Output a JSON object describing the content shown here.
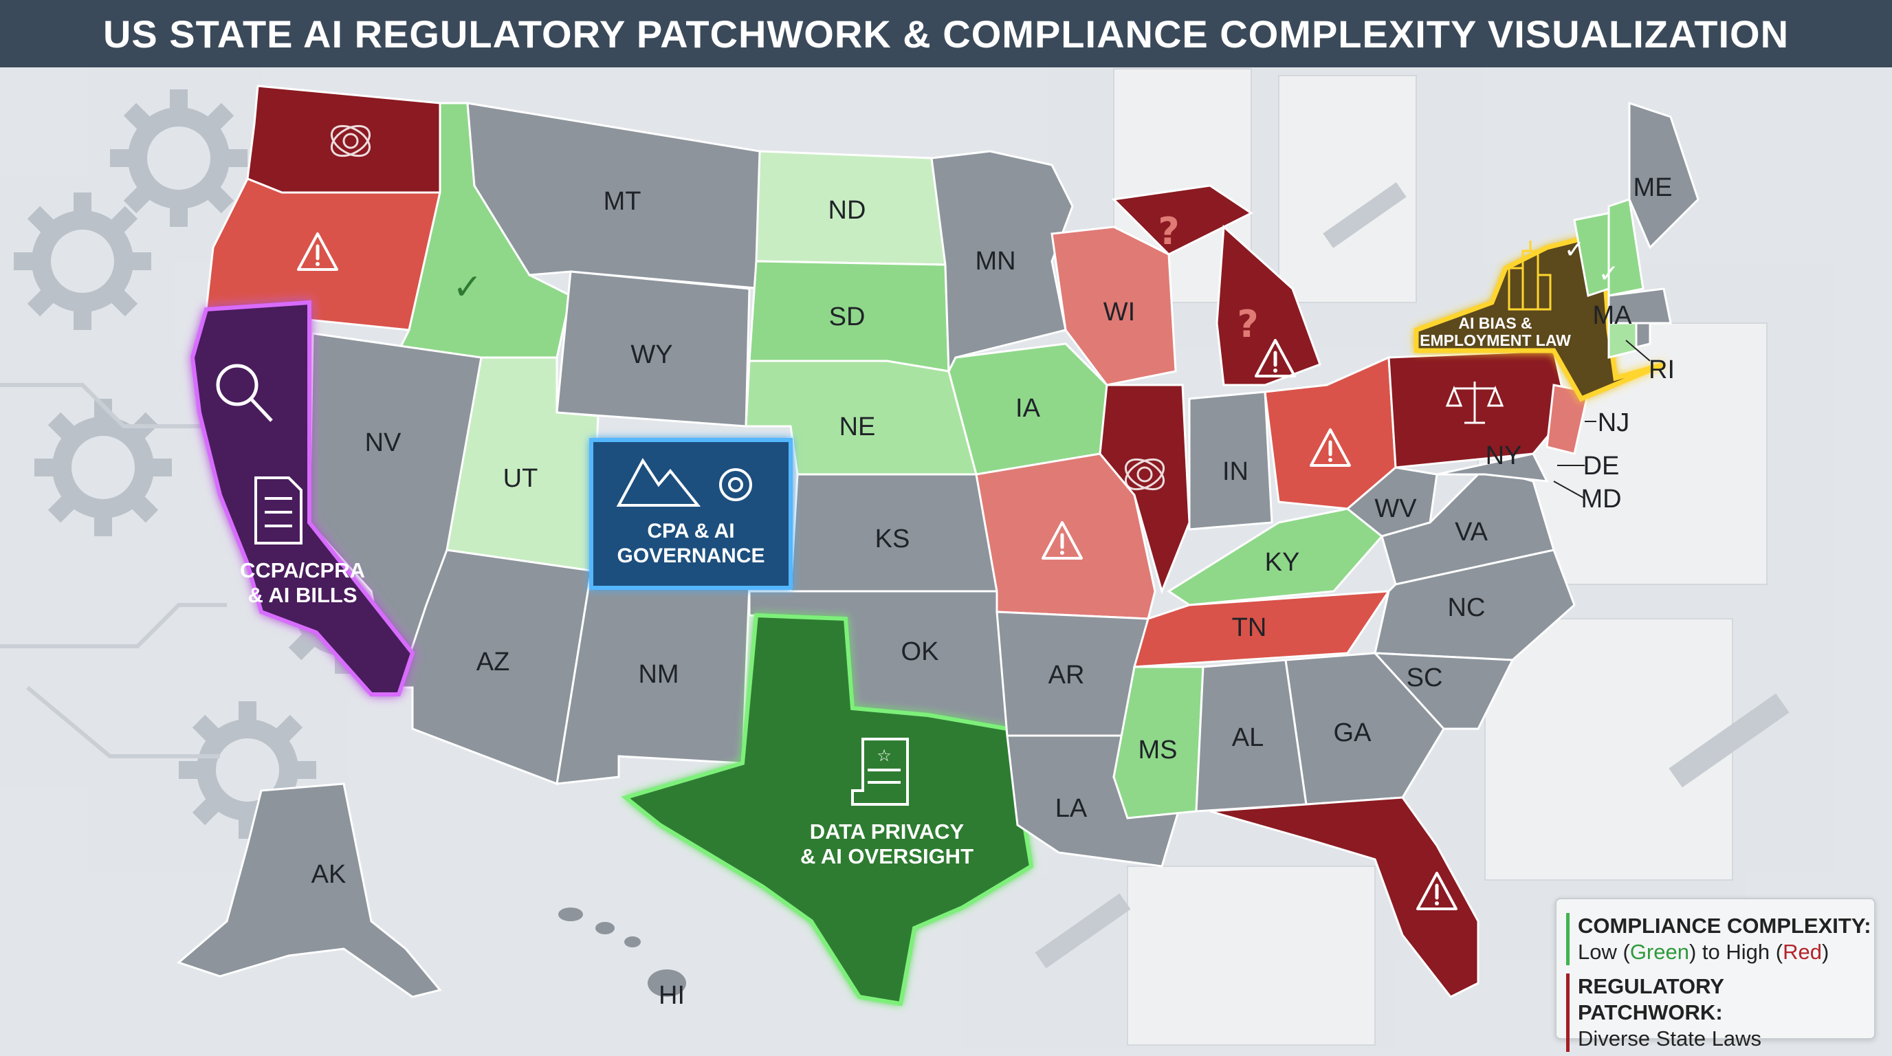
{
  "title": "US STATE AI REGULATORY PATCHWORK & COMPLIANCE COMPLEXITY VISUALIZATION",
  "colors": {
    "high": "#8b1a22",
    "elevated": "#d9534a",
    "moderate_high": "#e07a75",
    "low": "#8fd88a",
    "very_low": "#c8edc2",
    "neutral": "#8d949c",
    "california": "#4a1f5c",
    "colorado": "#1e4f7e",
    "texas": "#2e7b33",
    "new_york": "#5b4a1a"
  },
  "states": {
    "WA": {
      "label": "",
      "level": "high",
      "icon": "tangled-network-icon"
    },
    "OR": {
      "label": "",
      "level": "elevated",
      "icon": "warning-icon"
    },
    "ID": {
      "label": "",
      "level": "low",
      "icon": "checkmark-icon"
    },
    "MT": {
      "label": "MT",
      "level": "neutral"
    },
    "ND": {
      "label": "ND",
      "level": "very_low"
    },
    "SD": {
      "label": "SD",
      "level": "low"
    },
    "NE": {
      "label": "NE",
      "level": "low"
    },
    "MN": {
      "label": "MN",
      "level": "neutral"
    },
    "WI": {
      "label": "WI",
      "level": "moderate_high"
    },
    "MI": {
      "label": "",
      "level": "high",
      "icon": "question-warning-icon"
    },
    "WY": {
      "label": "WY",
      "level": "neutral"
    },
    "NV": {
      "label": "NV",
      "level": "neutral"
    },
    "UT": {
      "label": "UT",
      "level": "very_low"
    },
    "IA": {
      "label": "IA",
      "level": "low"
    },
    "IL": {
      "label": "",
      "level": "high",
      "icon": "tangled-network-icon"
    },
    "IN": {
      "label": "IN",
      "level": "neutral"
    },
    "OH": {
      "label": "",
      "level": "elevated",
      "icon": "warning-icon"
    },
    "PA": {
      "label": "",
      "level": "high",
      "icon": "scales-of-justice-icon"
    },
    "KS": {
      "label": "KS",
      "level": "neutral"
    },
    "MO": {
      "label": "",
      "level": "moderate_high",
      "icon": "warning-icon"
    },
    "KY": {
      "label": "KY",
      "level": "low"
    },
    "WV": {
      "label": "WV",
      "level": "neutral"
    },
    "VA": {
      "label": "VA",
      "level": "neutral"
    },
    "AZ": {
      "label": "AZ",
      "level": "neutral"
    },
    "NM": {
      "label": "NM",
      "level": "neutral"
    },
    "OK": {
      "label": "OK",
      "level": "neutral"
    },
    "AR": {
      "label": "AR",
      "level": "neutral"
    },
    "TN": {
      "label": "TN",
      "level": "elevated"
    },
    "NC": {
      "label": "NC",
      "level": "neutral"
    },
    "SC": {
      "label": "SC",
      "level": "neutral"
    },
    "MS": {
      "label": "MS",
      "level": "low"
    },
    "AL": {
      "label": "AL",
      "level": "neutral"
    },
    "GA": {
      "label": "GA",
      "level": "neutral"
    },
    "LA": {
      "label": "LA",
      "level": "neutral"
    },
    "FL": {
      "label": "",
      "level": "high",
      "icon": "warning-icon"
    },
    "ME": {
      "label": "ME",
      "level": "neutral"
    },
    "VT": {
      "label": "",
      "level": "low",
      "icon": "checkmark-icon"
    },
    "NH": {
      "label": "",
      "level": "low",
      "icon": "checkmark-icon"
    },
    "MA": {
      "label": "MA",
      "level": "neutral"
    },
    "RI": {
      "label": "RI",
      "level": "neutral"
    },
    "CT": {
      "label": "",
      "level": "low"
    },
    "NJ": {
      "label": "NJ",
      "level": "moderate_high"
    },
    "DE": {
      "label": "DE",
      "level": "neutral"
    },
    "MD": {
      "label": "MD",
      "level": "neutral"
    },
    "NY_small": {
      "label": "NY"
    },
    "AK": {
      "label": "AK",
      "level": "neutral"
    },
    "HI": {
      "label": "HI",
      "level": "neutral"
    }
  },
  "callouts": {
    "california": {
      "line1": "CCPA/CPRA",
      "line2": "& AI BILLS",
      "icon": "magnifier-icon"
    },
    "colorado": {
      "line1": "CPA & AI",
      "line2": "GOVERNANCE",
      "icon": "mountain-gear-icon"
    },
    "texas": {
      "line1": "DATA PRIVACY",
      "line2": "& AI OVERSIGHT",
      "icon": "scroll-star-icon"
    },
    "new_york": {
      "line1": "AI BIAS &",
      "line2": "EMPLOYMENT LAW",
      "icon": "skyscraper-icon"
    }
  },
  "legend": {
    "complexity_heading": "COMPLIANCE COMPLEXITY:",
    "complexity_prefix": "Low (",
    "complexity_low": "Green",
    "complexity_mid": ") to High (",
    "complexity_high": "Red",
    "complexity_suffix": ")",
    "patchwork_heading": "REGULATORY PATCHWORK:",
    "patchwork_sub": "Diverse State Laws"
  }
}
